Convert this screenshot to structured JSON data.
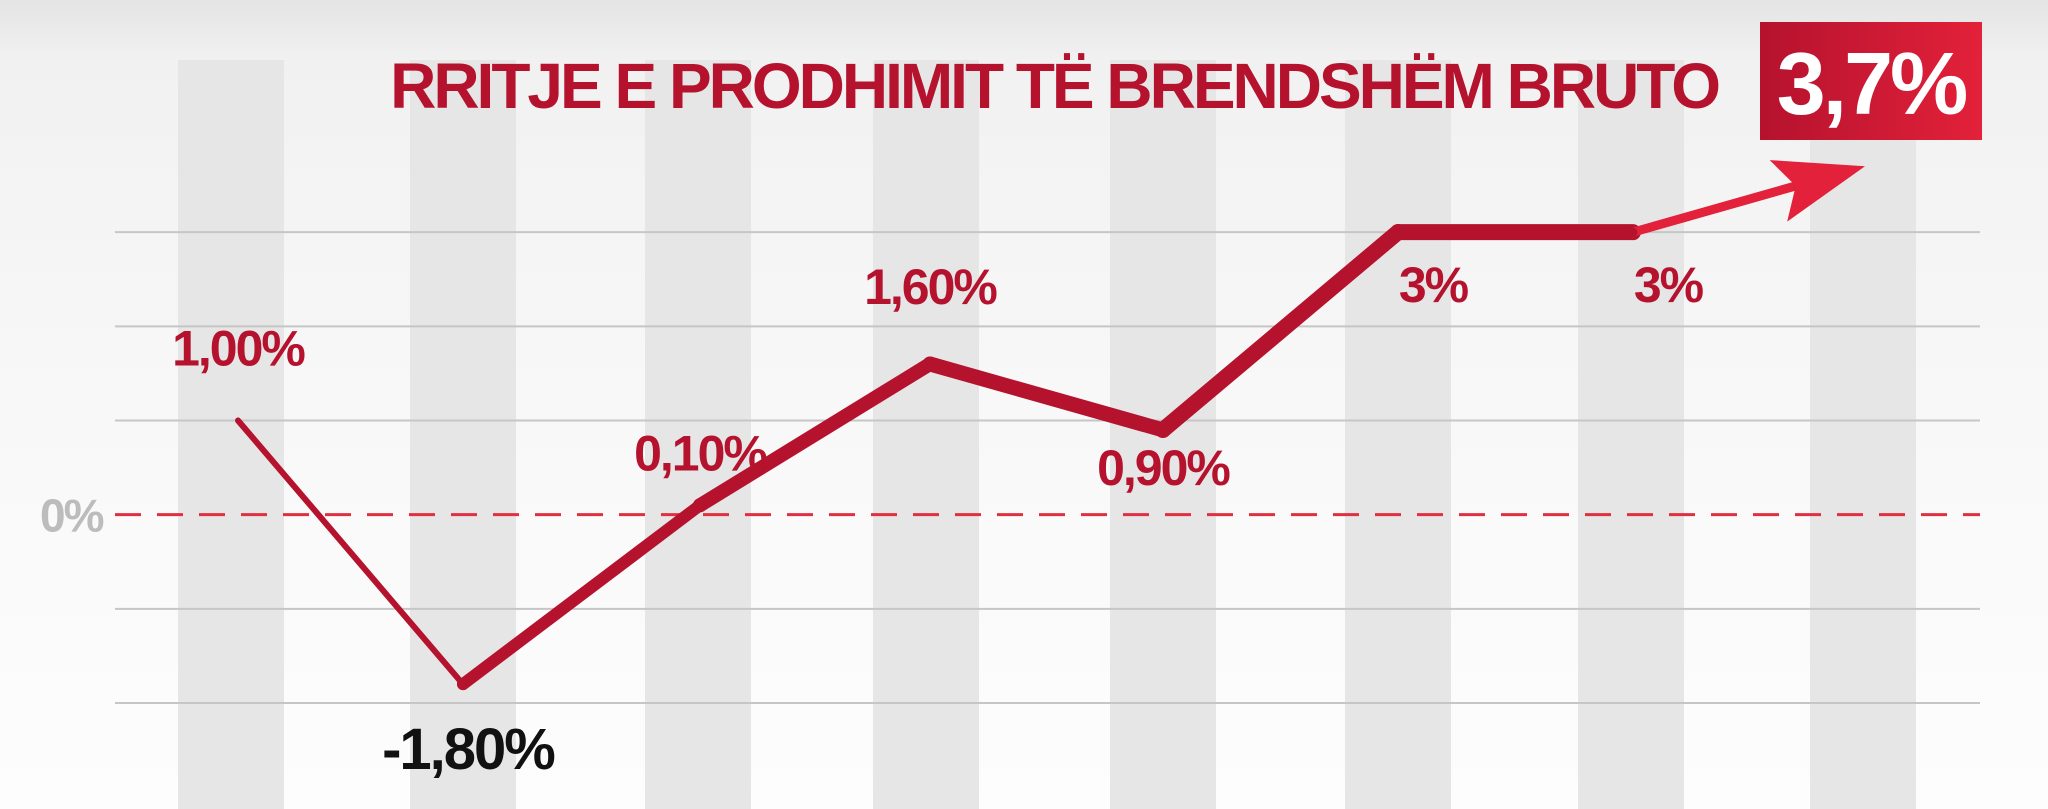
{
  "colors": {
    "accent": "#b5122e",
    "accent_light": "#e3213a",
    "negative_label": "#111111",
    "zero_label": "#bcbcbc",
    "gridline": "#c6c6c6",
    "column_band": "#e6e6e6",
    "zero_line": "#e0303f",
    "badge_text": "#ffffff"
  },
  "chart_data": {
    "type": "line",
    "title": "RRITJE E PRODHIMIT TË BRENDSHËM BRUTO",
    "headline_value": "3,7%",
    "zero_label": "0%",
    "values": [
      1.0,
      -1.8,
      0.1,
      1.6,
      0.9,
      3.0,
      3.0,
      3.7
    ],
    "data_labels": [
      "1,00%",
      "-1,80%",
      "0,10%",
      "1,60%",
      "0,90%",
      "3%",
      "3%",
      ""
    ],
    "ylim": [
      -2.0,
      4.0
    ],
    "gridlines": true,
    "zero_line": "dashed",
    "last_point": "arrow"
  }
}
